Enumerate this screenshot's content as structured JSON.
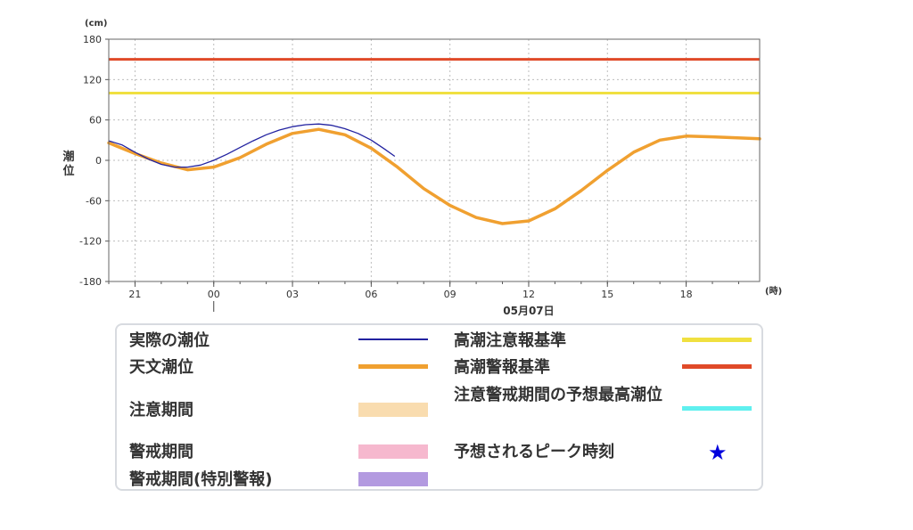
{
  "chart_data": {
    "type": "line",
    "y_unit_label": "(cm)",
    "ylabel": "潮位",
    "x_unit_label": "(時)",
    "date_label": "05月07日",
    "ylim": [
      -180,
      180
    ],
    "yticks": [
      180,
      120,
      60,
      0,
      -60,
      -120,
      -180
    ],
    "xlim": [
      -4.0,
      20.8
    ],
    "xticks": [
      {
        "label": "21",
        "hour": -3
      },
      {
        "label": "00",
        "hour": 0
      },
      {
        "label": "03",
        "hour": 3
      },
      {
        "label": "06",
        "hour": 6
      },
      {
        "label": "09",
        "hour": 9
      },
      {
        "label": "12",
        "hour": 12
      },
      {
        "label": "15",
        "hour": 15
      },
      {
        "label": "18",
        "hour": 18
      }
    ],
    "grid": true,
    "thresholds": [
      {
        "name": "高潮注意報基準",
        "value": 100,
        "color": "#f0e040"
      },
      {
        "name": "高潮警報基準",
        "value": 150,
        "color": "#e04a28"
      }
    ],
    "series": [
      {
        "name": "実際の潮位",
        "color": "#2222a0",
        "points": [
          [
            -4.0,
            29
          ],
          [
            -3.5,
            23
          ],
          [
            -3.0,
            12
          ],
          [
            -2.5,
            2
          ],
          [
            -2.0,
            -6
          ],
          [
            -1.5,
            -10
          ],
          [
            -1.0,
            -10
          ],
          [
            -0.5,
            -7
          ],
          [
            0.0,
            0
          ],
          [
            0.5,
            9
          ],
          [
            1.0,
            19
          ],
          [
            1.5,
            29
          ],
          [
            2.0,
            38
          ],
          [
            2.5,
            45
          ],
          [
            3.0,
            50
          ],
          [
            3.5,
            53
          ],
          [
            4.0,
            54
          ],
          [
            4.5,
            52
          ],
          [
            5.0,
            47
          ],
          [
            5.5,
            40
          ],
          [
            6.0,
            30
          ],
          [
            6.5,
            17
          ],
          [
            6.9,
            6
          ]
        ]
      },
      {
        "name": "天文潮位",
        "color": "#f0a030",
        "points": [
          [
            -4.0,
            26
          ],
          [
            -3.0,
            10
          ],
          [
            -2.0,
            -4
          ],
          [
            -1.0,
            -14
          ],
          [
            0.0,
            -10
          ],
          [
            1.0,
            4
          ],
          [
            2.0,
            24
          ],
          [
            3.0,
            40
          ],
          [
            4.0,
            46
          ],
          [
            5.0,
            38
          ],
          [
            6.0,
            18
          ],
          [
            7.0,
            -10
          ],
          [
            8.0,
            -42
          ],
          [
            9.0,
            -67
          ],
          [
            10.0,
            -85
          ],
          [
            11.0,
            -94
          ],
          [
            12.0,
            -90
          ],
          [
            13.0,
            -72
          ],
          [
            14.0,
            -45
          ],
          [
            15.0,
            -15
          ],
          [
            16.0,
            12
          ],
          [
            17.0,
            30
          ],
          [
            18.0,
            36
          ],
          [
            19.0,
            35
          ],
          [
            20.8,
            32
          ]
        ]
      }
    ]
  },
  "legend": {
    "items": [
      {
        "label": "実際の潮位",
        "kind": "line",
        "color": "#2222a0"
      },
      {
        "label": "天文潮位",
        "kind": "line",
        "color": "#f0a030"
      },
      {
        "label": "注意期間",
        "kind": "band",
        "color": "#f9dcaf"
      },
      {
        "label": "警戒期間",
        "kind": "band",
        "color": "#f6b8ce"
      },
      {
        "label": "警戒期間(特別警報)",
        "kind": "band",
        "color": "#b39ae0"
      },
      {
        "label": "高潮注意報基準",
        "kind": "line",
        "color": "#f0e040"
      },
      {
        "label": "高潮警報基準",
        "kind": "line",
        "color": "#e04a28"
      },
      {
        "label": "注意警戒期間の予想最高潮位",
        "kind": "line",
        "color": "#5ff0ef"
      },
      {
        "label": "予想されるピーク時刻",
        "kind": "star",
        "color": "#0000dd",
        "symbol": "★"
      }
    ]
  }
}
